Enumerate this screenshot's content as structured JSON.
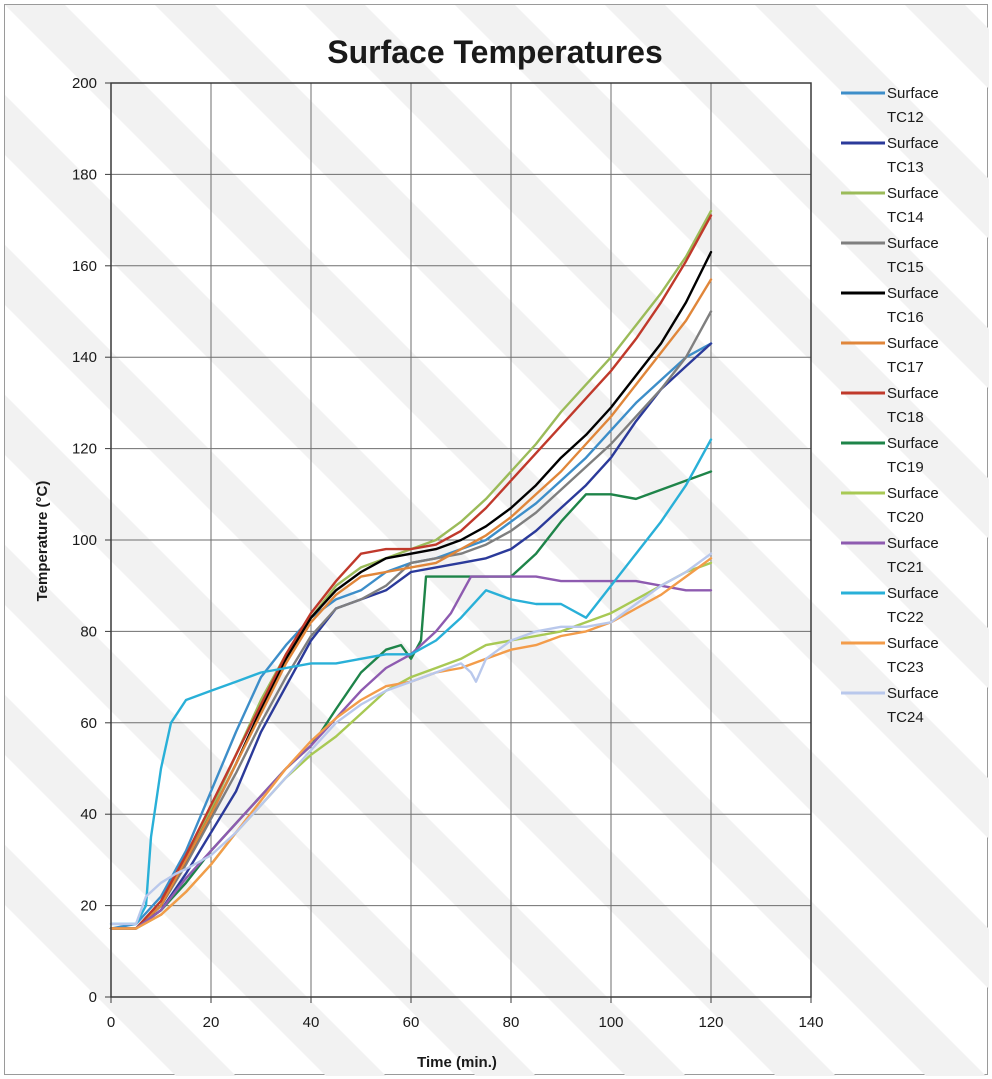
{
  "chart_data": {
    "type": "line",
    "title": "Surface Temperatures",
    "xlabel": "Time (min.)",
    "ylabel": "Temperature (°C)",
    "xlim": [
      0,
      140
    ],
    "ylim": [
      0,
      200
    ],
    "xticks": [
      "0",
      "20",
      "40",
      "60",
      "80",
      "100",
      "120",
      "140"
    ],
    "yticks": [
      "0",
      "20",
      "40",
      "60",
      "80",
      "100",
      "120",
      "140",
      "160",
      "180",
      "200"
    ],
    "grid": true,
    "legend_position": "right",
    "series": [
      {
        "name": "Surface TC12",
        "color": "#3d8ec9",
        "x": [
          0,
          5,
          10,
          15,
          20,
          25,
          30,
          35,
          40,
          45,
          50,
          55,
          60,
          65,
          70,
          75,
          80,
          85,
          90,
          95,
          100,
          105,
          110,
          115,
          120
        ],
        "y": [
          15,
          16,
          22,
          32,
          45,
          58,
          70,
          77,
          83,
          87,
          89,
          93,
          95,
          96,
          98,
          100,
          104,
          108,
          113,
          118,
          124,
          130,
          135,
          140,
          143
        ]
      },
      {
        "name": "Surface TC13",
        "color": "#2b3a9a",
        "x": [
          0,
          5,
          10,
          15,
          20,
          25,
          30,
          35,
          40,
          45,
          50,
          55,
          60,
          65,
          70,
          75,
          80,
          85,
          90,
          95,
          100,
          105,
          110,
          115,
          120
        ],
        "y": [
          15,
          15,
          19,
          27,
          36,
          45,
          58,
          68,
          78,
          85,
          87,
          89,
          93,
          94,
          95,
          96,
          98,
          102,
          107,
          112,
          118,
          126,
          133,
          138,
          143
        ]
      },
      {
        "name": "Surface TC14",
        "color": "#9bbb59",
        "x": [
          0,
          5,
          10,
          15,
          20,
          25,
          30,
          35,
          40,
          45,
          50,
          55,
          60,
          65,
          70,
          75,
          80,
          85,
          90,
          95,
          100,
          105,
          110,
          115,
          120
        ],
        "y": [
          15,
          15,
          21,
          30,
          41,
          53,
          65,
          75,
          83,
          90,
          94,
          96,
          98,
          100,
          104,
          109,
          115,
          121,
          128,
          134,
          140,
          147,
          154,
          162,
          172
        ]
      },
      {
        "name": "Surface TC15",
        "color": "#7f7f7f",
        "x": [
          0,
          5,
          10,
          15,
          20,
          25,
          30,
          35,
          40,
          45,
          50,
          55,
          60,
          65,
          70,
          75,
          80,
          85,
          90,
          95,
          100,
          105,
          110,
          115,
          120
        ],
        "y": [
          15,
          15,
          20,
          29,
          39,
          49,
          60,
          70,
          79,
          85,
          87,
          90,
          95,
          96,
          97,
          99,
          102,
          106,
          111,
          116,
          121,
          127,
          133,
          140,
          150
        ]
      },
      {
        "name": "Surface TC16",
        "color": "#000000",
        "x": [
          0,
          5,
          10,
          15,
          20,
          25,
          30,
          35,
          40,
          45,
          50,
          55,
          60,
          65,
          70,
          75,
          80,
          85,
          90,
          95,
          100,
          105,
          110,
          115,
          120
        ],
        "y": [
          15,
          15,
          20,
          30,
          40,
          51,
          63,
          74,
          83,
          89,
          93,
          96,
          97,
          98,
          100,
          103,
          107,
          112,
          118,
          123,
          129,
          136,
          143,
          152,
          163
        ]
      },
      {
        "name": "Surface TC17",
        "color": "#e0863a",
        "x": [
          0,
          5,
          10,
          15,
          20,
          25,
          30,
          35,
          40,
          45,
          50,
          55,
          60,
          65,
          70,
          75,
          80,
          85,
          90,
          95,
          100,
          105,
          110,
          115,
          120
        ],
        "y": [
          15,
          15,
          20,
          30,
          40,
          51,
          62,
          73,
          82,
          88,
          92,
          93,
          94,
          95,
          98,
          101,
          105,
          110,
          115,
          121,
          127,
          134,
          141,
          148,
          157
        ]
      },
      {
        "name": "Surface TC18",
        "color": "#c0392b",
        "x": [
          0,
          5,
          10,
          15,
          20,
          25,
          30,
          35,
          40,
          45,
          50,
          55,
          60,
          65,
          70,
          75,
          80,
          85,
          90,
          95,
          100,
          105,
          110,
          115,
          120
        ],
        "y": [
          15,
          15,
          21,
          31,
          42,
          53,
          64,
          75,
          84,
          91,
          97,
          98,
          98,
          99,
          102,
          107,
          113,
          119,
          125,
          131,
          137,
          144,
          152,
          161,
          171
        ]
      },
      {
        "name": "Surface TC19",
        "color": "#1e8449",
        "x": [
          0,
          5,
          10,
          15,
          20,
          25,
          30,
          35,
          40,
          42,
          45,
          50,
          55,
          58,
          60,
          62,
          63,
          65,
          70,
          75,
          80,
          85,
          90,
          95,
          100,
          105,
          110,
          115,
          120
        ],
        "y": [
          15,
          15,
          19,
          25,
          32,
          38,
          44,
          50,
          55,
          58,
          63,
          71,
          76,
          77,
          74,
          78,
          92,
          92,
          92,
          92,
          92,
          97,
          104,
          110,
          110,
          109,
          111,
          113,
          115
        ]
      },
      {
        "name": "Surface TC20",
        "color": "#a8c954",
        "x": [
          0,
          5,
          10,
          15,
          20,
          25,
          30,
          35,
          40,
          45,
          50,
          55,
          60,
          65,
          70,
          75,
          80,
          85,
          90,
          95,
          100,
          105,
          110,
          115,
          120
        ],
        "y": [
          15,
          15,
          18,
          23,
          29,
          36,
          42,
          48,
          53,
          57,
          62,
          67,
          70,
          72,
          74,
          77,
          78,
          79,
          80,
          82,
          84,
          87,
          90,
          93,
          95
        ]
      },
      {
        "name": "Surface TC21",
        "color": "#8e5bb0",
        "x": [
          0,
          5,
          10,
          15,
          20,
          25,
          30,
          35,
          40,
          45,
          50,
          55,
          60,
          65,
          68,
          70,
          72,
          75,
          80,
          85,
          90,
          95,
          100,
          105,
          110,
          115,
          120
        ],
        "y": [
          15,
          15,
          19,
          26,
          32,
          38,
          44,
          50,
          55,
          61,
          67,
          72,
          75,
          80,
          84,
          88,
          92,
          92,
          92,
          92,
          91,
          91,
          91,
          91,
          90,
          89,
          89
        ]
      },
      {
        "name": "Surface TC22",
        "color": "#29b0d8",
        "x": [
          0,
          5,
          7,
          8,
          10,
          12,
          15,
          20,
          25,
          30,
          35,
          40,
          45,
          50,
          55,
          60,
          65,
          70,
          75,
          80,
          85,
          90,
          95,
          100,
          105,
          110,
          115,
          120
        ],
        "y": [
          16,
          16,
          20,
          35,
          50,
          60,
          65,
          67,
          69,
          71,
          72,
          73,
          73,
          74,
          75,
          75,
          78,
          83,
          89,
          87,
          86,
          86,
          83,
          90,
          97,
          104,
          112,
          122
        ]
      },
      {
        "name": "Surface TC23",
        "color": "#f39c4a",
        "x": [
          0,
          5,
          10,
          15,
          20,
          25,
          30,
          35,
          40,
          45,
          50,
          55,
          60,
          65,
          70,
          75,
          80,
          85,
          90,
          95,
          100,
          105,
          110,
          115,
          120
        ],
        "y": [
          15,
          15,
          18,
          23,
          29,
          36,
          43,
          50,
          56,
          61,
          65,
          68,
          69,
          71,
          72,
          74,
          76,
          77,
          79,
          80,
          82,
          85,
          88,
          92,
          96
        ]
      },
      {
        "name": "Surface TC24",
        "color": "#b9c8ec",
        "x": [
          0,
          5,
          7,
          10,
          13,
          15,
          20,
          25,
          30,
          35,
          40,
          45,
          50,
          55,
          60,
          65,
          70,
          72,
          73,
          75,
          80,
          85,
          90,
          95,
          100,
          105,
          110,
          115,
          120
        ],
        "y": [
          16,
          16,
          22,
          25,
          27,
          28,
          31,
          36,
          42,
          48,
          54,
          60,
          64,
          67,
          69,
          71,
          73,
          71,
          69,
          74,
          78,
          80,
          81,
          81,
          82,
          86,
          90,
          93,
          97
        ]
      }
    ]
  }
}
